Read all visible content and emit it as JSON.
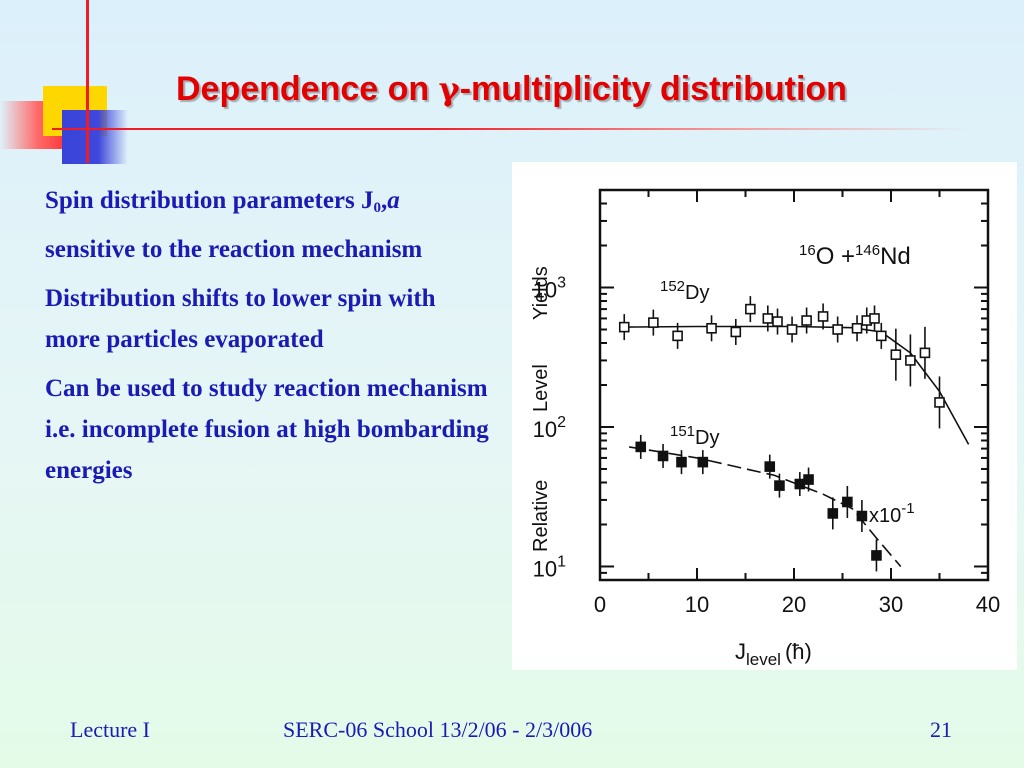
{
  "slide": {
    "title_before": "Dependence on ",
    "title_symbol": "γ",
    "title_after": "-multiplicity distribution",
    "bullets": [
      {
        "text": "Spin distribution parameters J",
        "sub": "0",
        "comma": ",",
        "italic": "a",
        "rest": "  sensitive to the reaction mechanism"
      },
      {
        "text": "Distribution shifts to lower spin with more particles evaporated"
      },
      {
        "text": "Can be used to study reaction mechanism i.e. incomplete fusion at high bombarding energies"
      }
    ],
    "footer": {
      "left": "Lecture I",
      "center": "SERC-06 School  13/2/06 - 2/3/006",
      "right": "21"
    },
    "colors": {
      "title": "#e30000",
      "text": "#1a1ab4",
      "accent_yellow": "#ffd700",
      "accent_blue": "#3f48dc",
      "accent_red": "#ee1c25"
    }
  },
  "chart_data": {
    "type": "scatter",
    "reaction": {
      "a1": "16",
      "s1": "O +",
      "a2": "146",
      "s2": "Nd"
    },
    "ylabel_words": [
      "Relative",
      "Level",
      "Yields"
    ],
    "xlabel": {
      "main": "J",
      "sub": "level",
      "unit": "(ħ)"
    },
    "xlim": [
      0,
      40
    ],
    "yscale": "log",
    "ylim": [
      8,
      5000
    ],
    "x_ticks": [
      "0",
      "10",
      "20",
      "30",
      "40"
    ],
    "y_ticks": [
      {
        "base": "10",
        "exp": "1",
        "value": 10
      },
      {
        "base": "10",
        "exp": "2",
        "value": 100
      },
      {
        "base": "10",
        "exp": "3",
        "value": 1000
      }
    ],
    "scale_note": "x10",
    "scale_note_exp": "-1",
    "series": [
      {
        "name_mass": "152",
        "name_sym": "Dy",
        "marker": "open-square",
        "x": [
          2.5,
          5.5,
          8,
          11.5,
          14,
          15.5,
          17.3,
          18.3,
          19.8,
          21.3,
          23,
          24.5,
          26.5,
          27.5,
          28.3,
          29,
          30.5,
          32,
          33.5,
          35
        ],
        "y": [
          520,
          560,
          450,
          510,
          480,
          700,
          600,
          570,
          500,
          580,
          620,
          500,
          510,
          580,
          600,
          450,
          330,
          300,
          340,
          150
        ]
      },
      {
        "name_mass": "151",
        "name_sym": "Dy",
        "marker": "filled-square",
        "x": [
          4.2,
          6.5,
          8.4,
          10.6,
          17.5,
          18.5,
          20.6,
          21.5,
          24,
          25.5,
          27,
          28.5
        ],
        "y": [
          72,
          62,
          56,
          56,
          52,
          38,
          39,
          42,
          24,
          29,
          23,
          12
        ]
      }
    ]
  }
}
